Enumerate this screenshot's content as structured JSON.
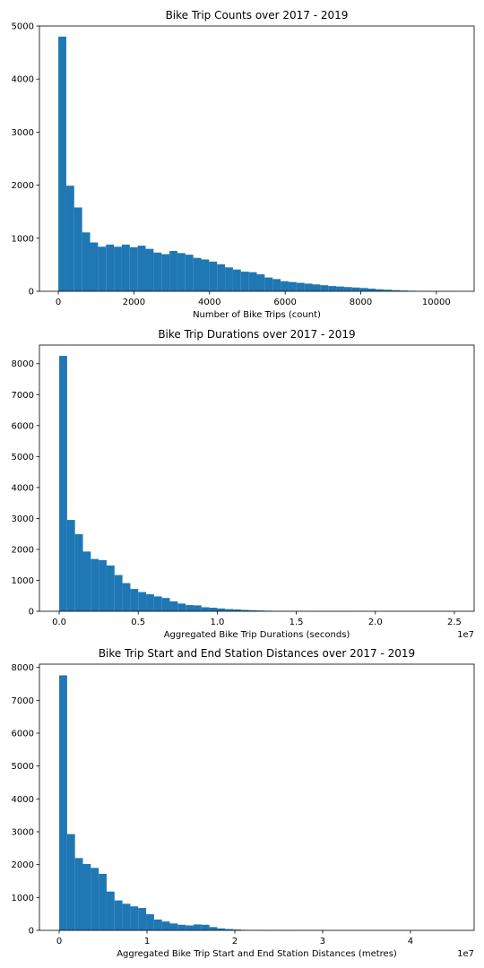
{
  "colors": {
    "bar": "#1f77b4",
    "axis": "#000000",
    "background": "#ffffff"
  },
  "chart_data": [
    {
      "type": "bar",
      "title": "Bike Trip Counts over 2017 - 2019",
      "xlabel": "Number of Bike Trips (count)",
      "ylabel": "",
      "xlim": [
        -500,
        11000
      ],
      "ylim": [
        0,
        5000
      ],
      "xticks": [
        0,
        2000,
        4000,
        6000,
        8000,
        10000
      ],
      "xtick_labels": [
        "0",
        "2000",
        "4000",
        "6000",
        "8000",
        "10000"
      ],
      "yticks": [
        0,
        1000,
        2000,
        3000,
        4000,
        5000
      ],
      "ytick_labels": [
        "0",
        "1000",
        "2000",
        "3000",
        "4000",
        "5000"
      ],
      "offset_label": "",
      "bin_start": 0,
      "bin_width": 210,
      "values": [
        4800,
        1990,
        1580,
        1110,
        920,
        840,
        880,
        840,
        880,
        830,
        860,
        800,
        730,
        700,
        760,
        720,
        690,
        630,
        600,
        560,
        510,
        450,
        410,
        370,
        360,
        320,
        260,
        230,
        190,
        175,
        160,
        145,
        130,
        115,
        100,
        90,
        80,
        72,
        62,
        50,
        38,
        30,
        22,
        15,
        10,
        6,
        3,
        2,
        1,
        1
      ],
      "grid": false,
      "legend": "none"
    },
    {
      "type": "bar",
      "title": "Bike Trip Durations over 2017 - 2019",
      "xlabel": "Aggregated Bike Trip Durations (seconds)",
      "ylabel": "",
      "xlim": [
        -1250000,
        26250000
      ],
      "ylim": [
        0,
        8600
      ],
      "xticks": [
        0,
        5000000,
        10000000,
        15000000,
        20000000,
        25000000
      ],
      "xtick_labels": [
        "0.0",
        "0.5",
        "1.0",
        "1.5",
        "2.0",
        "2.5"
      ],
      "yticks": [
        0,
        1000,
        2000,
        3000,
        4000,
        5000,
        6000,
        7000,
        8000
      ],
      "ytick_labels": [
        "0",
        "1000",
        "2000",
        "3000",
        "4000",
        "5000",
        "6000",
        "7000",
        "8000"
      ],
      "offset_label": "1e7",
      "bin_start": 0,
      "bin_width": 500000,
      "values": [
        8250,
        2950,
        2490,
        1930,
        1690,
        1650,
        1480,
        1170,
        910,
        720,
        620,
        550,
        480,
        430,
        320,
        250,
        200,
        190,
        130,
        115,
        90,
        70,
        60,
        45,
        35,
        25,
        18,
        12,
        8,
        6,
        4,
        3,
        2,
        2,
        1,
        1,
        1,
        0,
        0,
        0,
        0,
        0,
        0,
        0,
        0,
        0,
        0,
        0,
        0,
        1
      ],
      "grid": false,
      "legend": "none"
    },
    {
      "type": "bar",
      "title": "Bike Trip Start and End Station Distances over 2017 - 2019",
      "xlabel": "Aggregated Bike Trip Start and End Station Distances (metres)",
      "ylabel": "",
      "xlim": [
        -2250000,
        47250000
      ],
      "ylim": [
        0,
        8100
      ],
      "xticks": [
        0,
        10000000,
        20000000,
        30000000,
        40000000
      ],
      "xtick_labels": [
        "0",
        "1",
        "2",
        "3",
        "4"
      ],
      "yticks": [
        0,
        1000,
        2000,
        3000,
        4000,
        5000,
        6000,
        7000,
        8000
      ],
      "ytick_labels": [
        "0",
        "1000",
        "2000",
        "3000",
        "4000",
        "5000",
        "6000",
        "7000",
        "8000"
      ],
      "offset_label": "1e7",
      "bin_start": 0,
      "bin_width": 900000,
      "values": [
        7760,
        2930,
        2200,
        2020,
        1900,
        1720,
        1180,
        910,
        810,
        730,
        680,
        490,
        330,
        270,
        210,
        170,
        150,
        180,
        170,
        100,
        60,
        40,
        25,
        15,
        10,
        7,
        5,
        3,
        2,
        2,
        1,
        1,
        1,
        1,
        0,
        0,
        0,
        0,
        0,
        0,
        0,
        0,
        0,
        0,
        0,
        0,
        0,
        0,
        0,
        1
      ],
      "grid": false,
      "legend": "none"
    }
  ]
}
